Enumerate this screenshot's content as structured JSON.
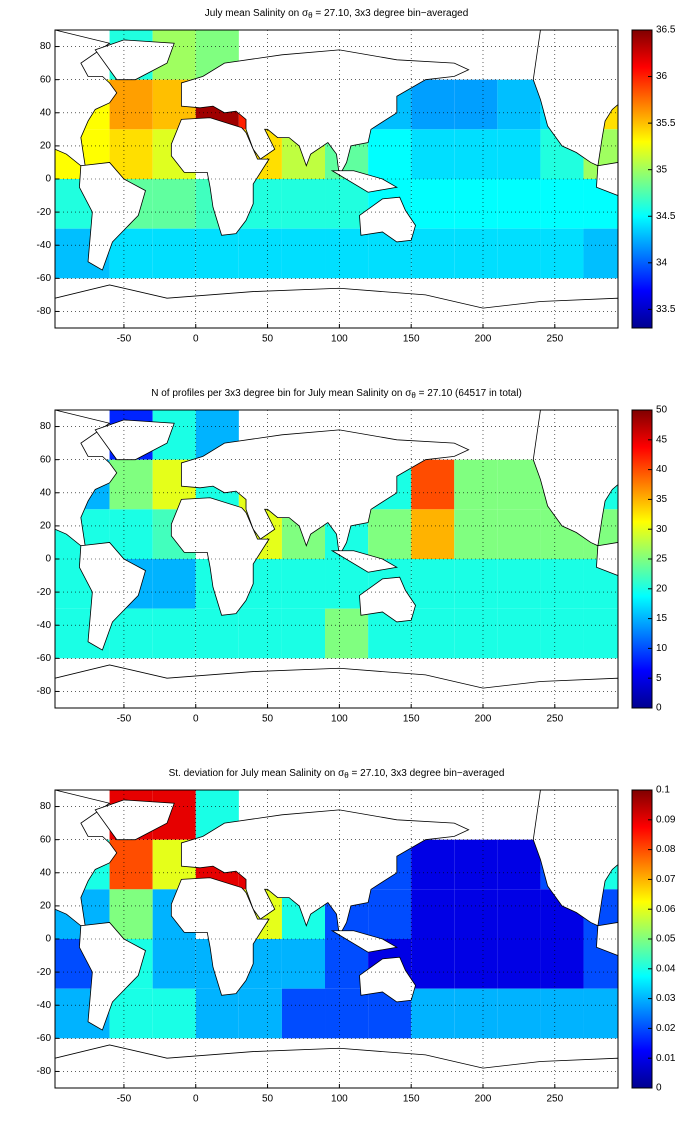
{
  "chart_data": [
    {
      "type": "heatmap",
      "title": [
        "July mean Salinity on σ",
        "θ",
        " = 27.10, 3x3 degree bin−averaged"
      ],
      "colormap": "jet",
      "clim": [
        33.3,
        36.5
      ],
      "cticks": [
        33.5,
        34,
        34.5,
        35,
        35.5,
        36,
        36.5
      ],
      "xlim": [
        -98,
        294
      ],
      "ylim": [
        -90,
        90
      ],
      "xticks": [
        -50,
        0,
        50,
        100,
        150,
        200,
        250
      ],
      "yticks": [
        -80,
        -60,
        -40,
        -20,
        0,
        20,
        40,
        60,
        80
      ],
      "grid": true,
      "x": [
        -98,
        -60,
        -30,
        0,
        30,
        60,
        90,
        120,
        150,
        180,
        210,
        240,
        270,
        294
      ],
      "y": [
        90,
        60,
        30,
        0,
        -30,
        -60,
        -90
      ],
      "values": [
        [
          null,
          34.6,
          35.0,
          34.9,
          null,
          null,
          null,
          null,
          null,
          null,
          null,
          null,
          null
        ],
        [
          35.3,
          35.6,
          35.5,
          36.4,
          36.0,
          null,
          null,
          34.3,
          34.2,
          34.2,
          34.3,
          34.4,
          35.4
        ],
        [
          35.3,
          35.4,
          35.2,
          null,
          35.4,
          35.1,
          34.8,
          34.5,
          34.4,
          34.4,
          34.4,
          34.6,
          35.0
        ],
        [
          34.6,
          34.8,
          34.8,
          34.7,
          34.6,
          34.6,
          34.6,
          34.5,
          34.5,
          34.5,
          34.5,
          34.5,
          34.5
        ],
        [
          34.3,
          34.4,
          34.4,
          34.4,
          34.4,
          34.4,
          34.4,
          34.4,
          34.4,
          34.4,
          34.4,
          34.4,
          34.3
        ],
        [
          null,
          null,
          null,
          null,
          null,
          null,
          null,
          null,
          null,
          null,
          null,
          null,
          null
        ]
      ]
    },
    {
      "type": "heatmap",
      "title": [
        "N of profiles per 3x3 degree bin for July mean Salinity on σ",
        "θ",
        " = 27.10 (64517 in total)"
      ],
      "colormap": "jet",
      "clim": [
        0,
        50
      ],
      "cticks": [
        0,
        5,
        10,
        15,
        20,
        25,
        30,
        35,
        40,
        45,
        50
      ],
      "xlim": [
        -98,
        294
      ],
      "ylim": [
        -90,
        90
      ],
      "xticks": [
        -50,
        0,
        50,
        100,
        150,
        200,
        250
      ],
      "yticks": [
        -80,
        -60,
        -40,
        -20,
        0,
        20,
        40,
        60,
        80
      ],
      "grid": true,
      "x": [
        -98,
        -60,
        -30,
        0,
        30,
        60,
        90,
        120,
        150,
        180,
        210,
        240,
        270,
        294
      ],
      "y": [
        90,
        60,
        30,
        0,
        -30,
        -60,
        -90
      ],
      "values": [
        [
          null,
          8,
          20,
          15,
          null,
          null,
          null,
          null,
          null,
          null,
          null,
          null,
          null
        ],
        [
          15,
          25,
          30,
          20,
          30,
          null,
          null,
          20,
          40,
          25,
          25,
          25,
          20
        ],
        [
          20,
          20,
          22,
          null,
          30,
          25,
          20,
          25,
          35,
          25,
          25,
          25,
          25
        ],
        [
          20,
          15,
          15,
          20,
          20,
          20,
          20,
          20,
          20,
          20,
          20,
          20,
          20
        ],
        [
          20,
          20,
          20,
          20,
          20,
          20,
          25,
          20,
          20,
          20,
          20,
          20,
          20
        ],
        [
          null,
          null,
          null,
          null,
          null,
          null,
          null,
          null,
          null,
          null,
          null,
          null,
          null
        ]
      ]
    },
    {
      "type": "heatmap",
      "title": [
        "St. deviation for July mean Salinity on σ",
        "θ",
        " = 27.10, 3x3 degree bin−averaged"
      ],
      "colormap": "jet",
      "clim": [
        0,
        0.1
      ],
      "cticks": [
        0,
        0.01,
        0.02,
        0.03,
        0.04,
        0.05,
        0.06,
        0.07,
        0.08,
        0.09,
        0.1
      ],
      "xlim": [
        -98,
        294
      ],
      "ylim": [
        -90,
        90
      ],
      "xticks": [
        -50,
        0,
        50,
        100,
        150,
        200,
        250
      ],
      "yticks": [
        -80,
        -60,
        -40,
        -20,
        0,
        20,
        40,
        60,
        80
      ],
      "grid": true,
      "x": [
        -98,
        -60,
        -30,
        0,
        30,
        60,
        90,
        120,
        150,
        180,
        210,
        240,
        270,
        294
      ],
      "y": [
        90,
        60,
        30,
        0,
        -30,
        -60,
        -90
      ],
      "values": [
        [
          null,
          0.09,
          0.09,
          0.04,
          null,
          null,
          null,
          null,
          null,
          null,
          null,
          null,
          null
        ],
        [
          0.04,
          0.08,
          0.06,
          0.09,
          0.09,
          null,
          null,
          0.02,
          0.01,
          0.01,
          0.01,
          0.02,
          0.04
        ],
        [
          0.03,
          0.05,
          0.03,
          null,
          0.06,
          0.04,
          0.02,
          0.02,
          0.01,
          0.01,
          0.01,
          0.01,
          0.02
        ],
        [
          0.02,
          0.04,
          0.03,
          0.03,
          0.03,
          0.03,
          0.02,
          0.01,
          0.01,
          0.01,
          0.01,
          0.01,
          0.02
        ],
        [
          0.03,
          0.04,
          0.04,
          0.03,
          0.03,
          0.02,
          0.02,
          0.02,
          0.03,
          0.03,
          0.03,
          0.03,
          0.03
        ],
        [
          null,
          null,
          null,
          null,
          null,
          null,
          null,
          null,
          null,
          null,
          null,
          null,
          null
        ]
      ]
    }
  ]
}
